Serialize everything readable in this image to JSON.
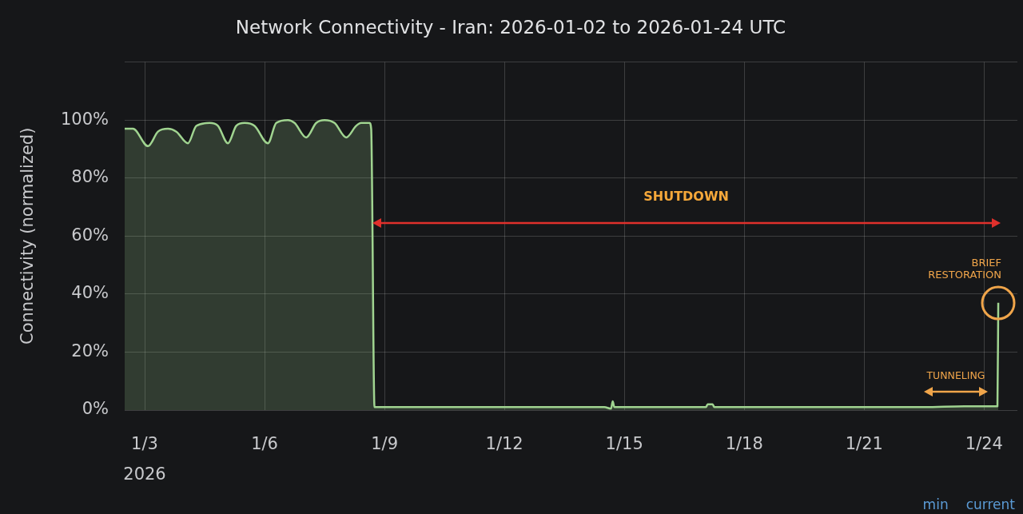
{
  "chart_data": {
    "type": "area",
    "title": "Network Connectivity - Iran: 2026-01-02 to 2026-01-24 UTC",
    "ylabel": "Connectivity (normalized)",
    "x": [
      "2026-01-02T12:00",
      "2026-01-02T17:00",
      "2026-01-03T02:00",
      "2026-01-03T08:00",
      "2026-01-03T14:00",
      "2026-01-03T19:00",
      "2026-01-04T02:00",
      "2026-01-04T07:00",
      "2026-01-04T15:00",
      "2026-01-04T20:00",
      "2026-01-05T02:00",
      "2026-01-05T07:00",
      "2026-01-05T12:00",
      "2026-01-05T18:00",
      "2026-01-06T02:00",
      "2026-01-06T07:00",
      "2026-01-06T14:00",
      "2026-01-06T18:00",
      "2026-01-07T01:00",
      "2026-01-07T07:00",
      "2026-01-07T12:00",
      "2026-01-07T18:00",
      "2026-01-08T01:00",
      "2026-01-08T07:00",
      "2026-01-08T10:00",
      "2026-01-08T15:00",
      "2026-01-08T16:00",
      "2026-01-08T18:00",
      "2026-01-11T00:00",
      "2026-01-14T12:00",
      "2026-01-14T16:00",
      "2026-01-14T17:00",
      "2026-01-14T18:00",
      "2026-01-17T01:00",
      "2026-01-17T02:00",
      "2026-01-17T05:00",
      "2026-01-17T06:00",
      "2026-01-20T00:00",
      "2026-01-22T12:00",
      "2026-01-23T12:00",
      "2026-01-24T08:00",
      "2026-01-24T08:30"
    ],
    "values": [
      97,
      97,
      91,
      96,
      97,
      96,
      92,
      98,
      99,
      98,
      92,
      98,
      99,
      98,
      92,
      99,
      100,
      99,
      94,
      99,
      100,
      99,
      94,
      98,
      99,
      99,
      97,
      1,
      1,
      1,
      0.5,
      3,
      1,
      1,
      2,
      2,
      1,
      1,
      1,
      1.3,
      1.3,
      37
    ],
    "color": "#a0d490",
    "xlim": [
      "2026-01-02T12:00",
      "2026-01-24T20:00"
    ],
    "xticks": [
      {
        "value": "2026-01-03",
        "label": "1/3\n2026"
      },
      {
        "value": "2026-01-06",
        "label": "1/6"
      },
      {
        "value": "2026-01-09",
        "label": "1/9"
      },
      {
        "value": "2026-01-12",
        "label": "1/12"
      },
      {
        "value": "2026-01-15",
        "label": "1/15"
      },
      {
        "value": "2026-01-18",
        "label": "1/18"
      },
      {
        "value": "2026-01-21",
        "label": "1/21"
      },
      {
        "value": "2026-01-24",
        "label": "1/24"
      }
    ],
    "ylim": [
      0,
      120
    ],
    "yticks": [
      {
        "value": 0,
        "label": "0%"
      },
      {
        "value": 20,
        "label": "20%"
      },
      {
        "value": 40,
        "label": "40%"
      },
      {
        "value": 60,
        "label": "60%"
      },
      {
        "value": 80,
        "label": "80%"
      },
      {
        "value": 100,
        "label": "100%"
      },
      {
        "value": 120,
        "label": null
      }
    ],
    "grid": true,
    "annotations": [
      "SHUTDOWN",
      {
        "text": "BRIEF RESTORATION",
        "x": "2026-01-24T08:30",
        "y": 37
      },
      "TUNNELING",
      "min",
      "current"
    ]
  }
}
